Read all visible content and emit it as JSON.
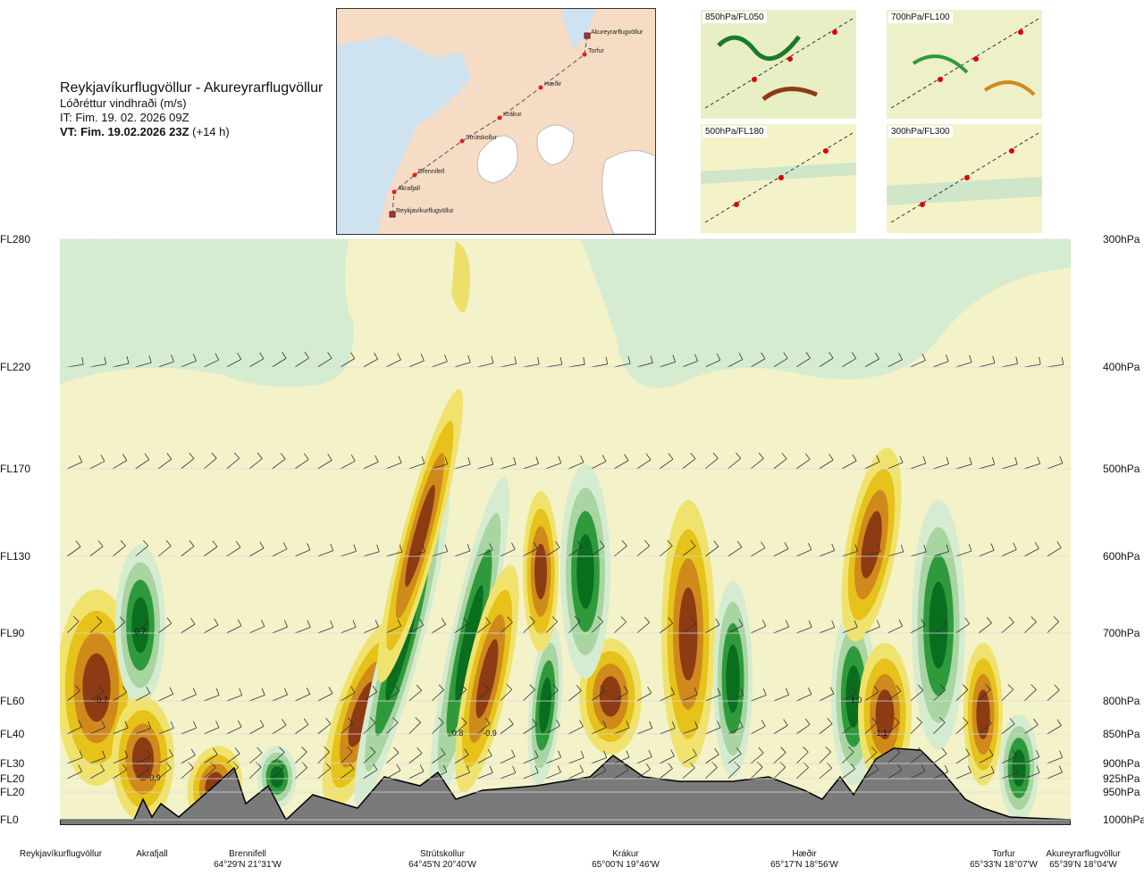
{
  "header": {
    "title": "Reykjavíkurflugvöllur - Akureyrarflugvöllur",
    "subtitle": "Lóðréttur vindhraði (m/s)",
    "it_line": "IT: Fim. 19. 02. 2026 09Z",
    "vt_bold": "VT: Fim. 19.02.2026 23Z",
    "vt_rest": "(+14 h)"
  },
  "route_map": {
    "points": [
      {
        "name": "Akureyrarflugvöllur"
      },
      {
        "name": "Torfur"
      },
      {
        "name": "Hæðir"
      },
      {
        "name": "Krákur"
      },
      {
        "name": "Strútskollur"
      },
      {
        "name": "Brennifell"
      },
      {
        "name": "Akrafjall"
      },
      {
        "name": "Reykjavíkurflugvöllur"
      }
    ]
  },
  "mini_maps": [
    {
      "label": "850hPa/FL050"
    },
    {
      "label": "700hPa/FL100"
    },
    {
      "label": "500hPa/FL180"
    },
    {
      "label": "300hPa/FL300"
    }
  ],
  "chart_data": {
    "type": "heatmap",
    "x_waypoints": [
      {
        "name": "Reykjavíkurflugvöllur",
        "coord": ""
      },
      {
        "name": "Akrafjall",
        "coord": ""
      },
      {
        "name": "Brennifell",
        "coord": "64°29'N 21°31'W"
      },
      {
        "name": "Strútskollur",
        "coord": "64°45'N 20°40'W"
      },
      {
        "name": "Krákur",
        "coord": "65°00'N 19°46'W"
      },
      {
        "name": "Hæðir",
        "coord": "65°17'N 18°56'W"
      },
      {
        "name": "Torfur",
        "coord": "65°33'N 18°07'W"
      },
      {
        "name": "Akureyrarflugvöllur",
        "coord": "65°39'N 18°04'W"
      }
    ],
    "levels": [
      {
        "fl": "FL280",
        "hpa": "300hPa"
      },
      {
        "fl": "FL220",
        "hpa": "400hPa"
      },
      {
        "fl": "FL170",
        "hpa": "500hPa"
      },
      {
        "fl": "FL130",
        "hpa": "600hPa"
      },
      {
        "fl": "FL90",
        "hpa": "700hPa"
      },
      {
        "fl": "FL60",
        "hpa": "800hPa"
      },
      {
        "fl": "FL40",
        "hpa": "850hPa"
      },
      {
        "fl": "FL30",
        "hpa": "900hPa"
      },
      {
        "fl": "FL20",
        "hpa": "925hPa"
      },
      {
        "fl": "FL20",
        "hpa": "950hPa"
      },
      {
        "fl": "FL0",
        "hpa": "1000hPa"
      }
    ],
    "annotations": [
      {
        "text": "0.7"
      },
      {
        "text": "-0.7"
      },
      {
        "text": "-0.9"
      },
      {
        "text": "0.8"
      },
      {
        "text": "-0.9"
      },
      {
        "text": "1.0"
      },
      {
        "text": "-1.1"
      }
    ],
    "colors": {
      "strong_up": "#0a6e1f",
      "up": "#2f9a3c",
      "weak_up": "#a8d5a2",
      "faint_up": "#d6ecd0",
      "neutral": "#f4f2c9",
      "faint_down": "#f0e36d",
      "down": "#e6c21a",
      "strong_down": "#d08a1c",
      "max_down": "#8c3b12",
      "terrain": "#7a7a7a"
    }
  }
}
